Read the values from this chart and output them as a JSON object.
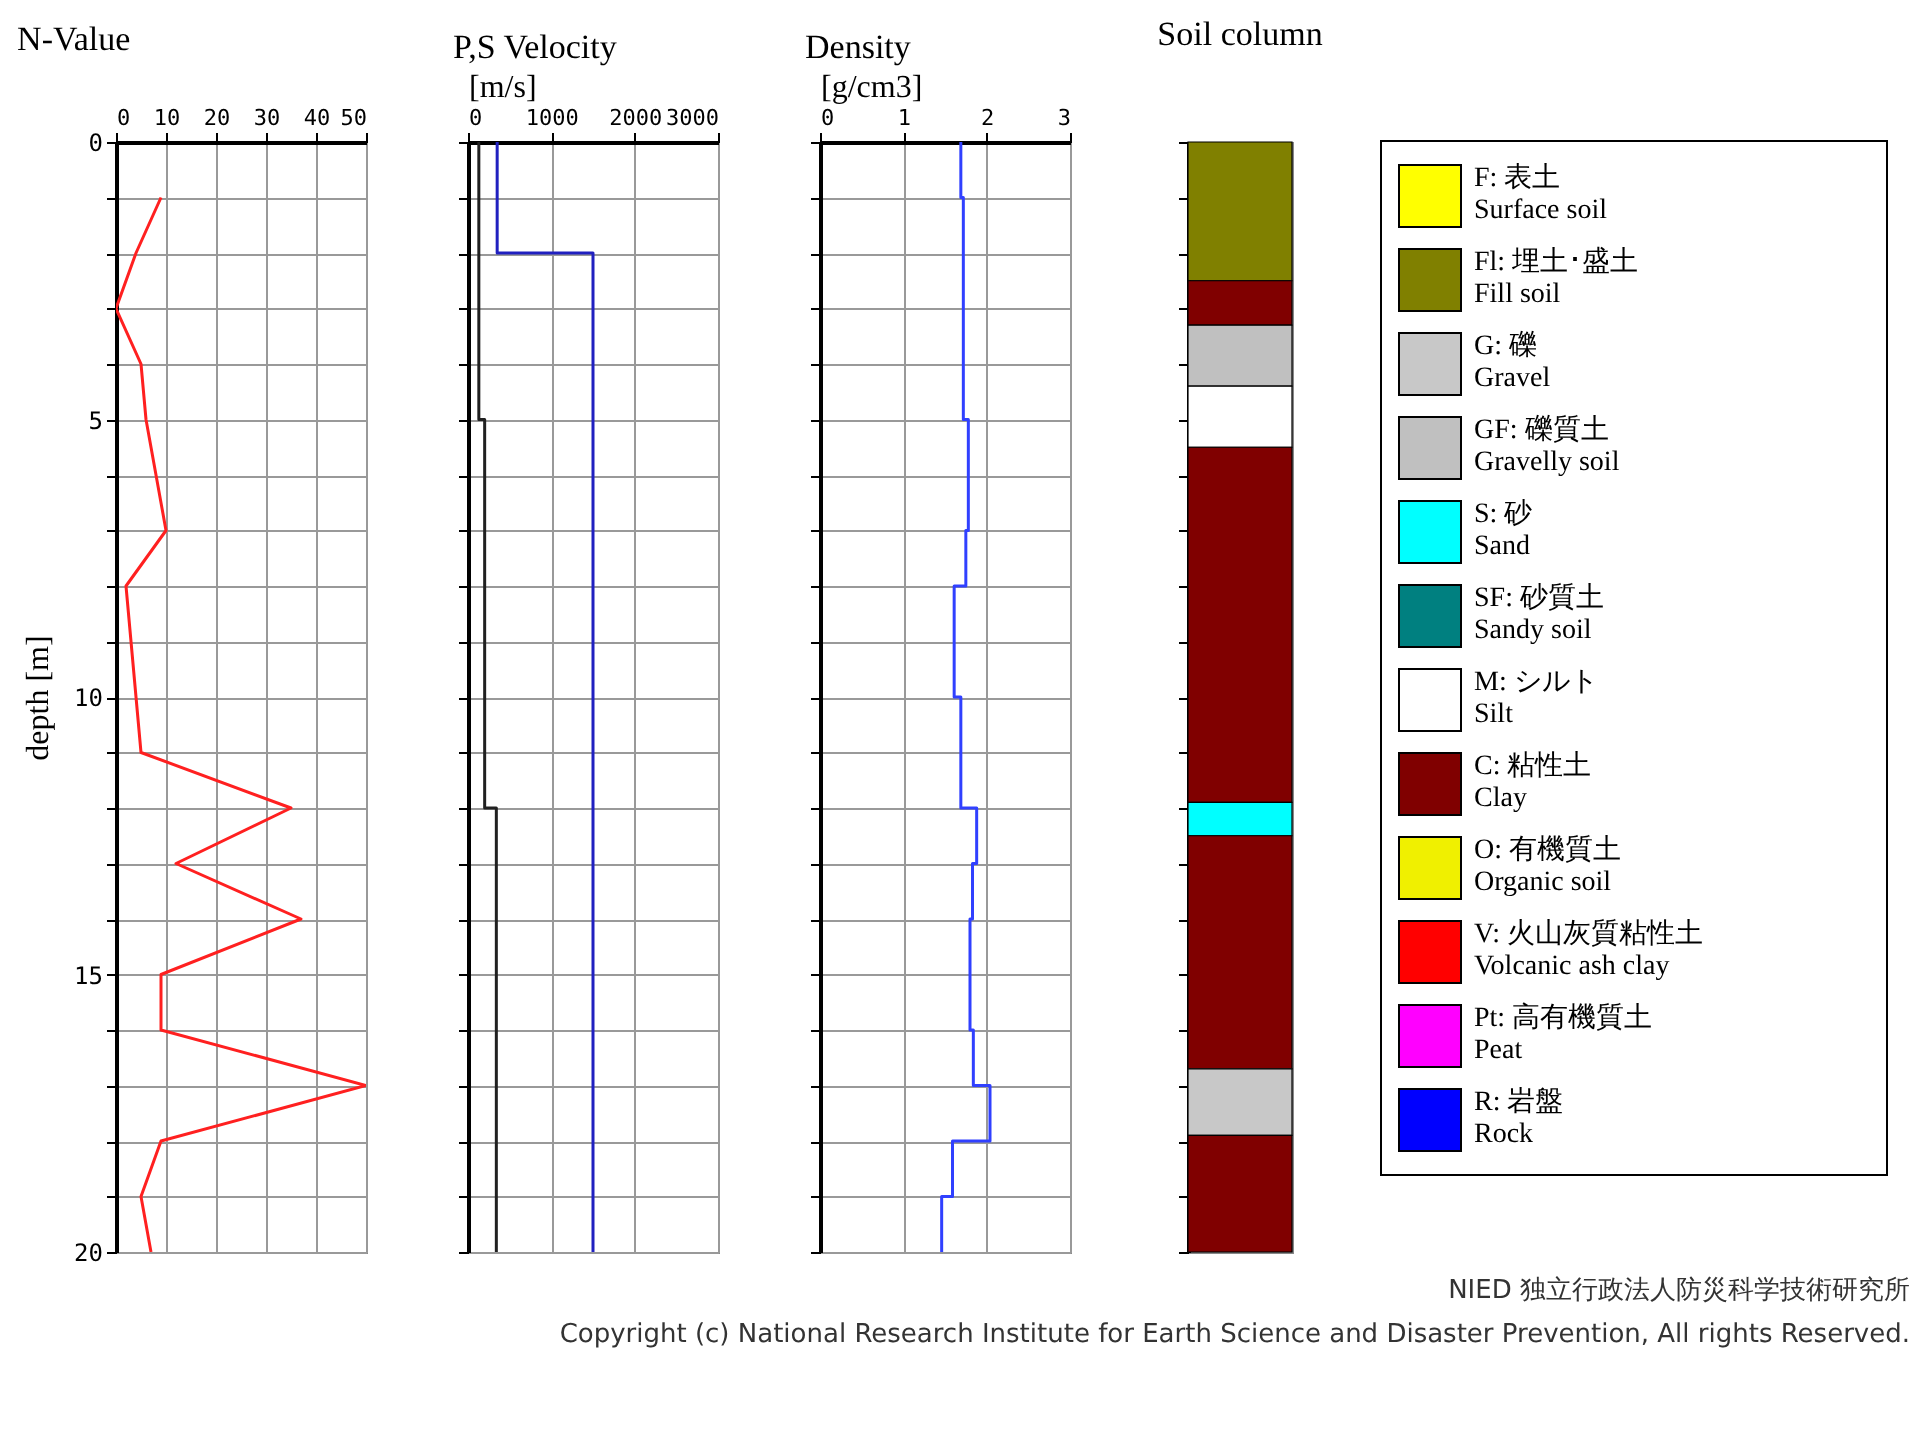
{
  "chart_data": [
    {
      "type": "line",
      "title": "N-Value",
      "ylabel": "depth [m]",
      "xlim": [
        0,
        50
      ],
      "xticks": [
        0,
        10,
        20,
        30,
        40,
        50
      ],
      "ylim": [
        20,
        0
      ],
      "yticks": [
        0,
        {
          "value": 1,
          "label": null
        },
        {
          "value": 2,
          "label": null
        },
        {
          "value": 3,
          "label": null
        },
        {
          "value": 4,
          "label": null
        },
        5,
        {
          "value": 6,
          "label": null
        },
        {
          "value": 7,
          "label": null
        },
        {
          "value": 8,
          "label": null
        },
        {
          "value": 9,
          "label": null
        },
        10,
        {
          "value": 11,
          "label": null
        },
        {
          "value": 12,
          "label": null
        },
        {
          "value": 13,
          "label": null
        },
        {
          "value": 14,
          "label": null
        },
        15,
        {
          "value": 16,
          "label": null
        },
        {
          "value": 17,
          "label": null
        },
        {
          "value": 18,
          "label": null
        },
        {
          "value": 19,
          "label": null
        },
        20
      ],
      "grid": true,
      "series": [
        {
          "color": "#ff2020",
          "x": [
            9,
            4,
            0,
            5,
            6,
            8,
            10,
            2,
            3,
            4,
            5,
            35,
            12,
            37,
            9,
            9,
            50,
            9,
            5,
            7
          ],
          "values": [
            1,
            2,
            3,
            4,
            5,
            6,
            7,
            8,
            9,
            10,
            11,
            12,
            13,
            14,
            15,
            16,
            17,
            18,
            19,
            20
          ]
        }
      ]
    },
    {
      "type": "line",
      "title": "P,S Velocity",
      "xlabel": "[m/s]",
      "xlim": [
        0,
        3000
      ],
      "xticks": [
        0,
        1000,
        2000,
        3000
      ],
      "ylim": [
        20,
        0
      ],
      "yticks": [
        0,
        {
          "value": 1,
          "label": null
        },
        {
          "value": 2,
          "label": null
        },
        {
          "value": 3,
          "label": null
        },
        {
          "value": 4,
          "label": null
        },
        5,
        {
          "value": 6,
          "label": null
        },
        {
          "value": 7,
          "label": null
        },
        {
          "value": 8,
          "label": null
        },
        {
          "value": 9,
          "label": null
        },
        10,
        {
          "value": 11,
          "label": null
        },
        {
          "value": 12,
          "label": null
        },
        {
          "value": 13,
          "label": null
        },
        {
          "value": 14,
          "label": null
        },
        15,
        {
          "value": 16,
          "label": null
        },
        {
          "value": 17,
          "label": null
        },
        {
          "value": 18,
          "label": null
        },
        {
          "value": 19,
          "label": null
        },
        20
      ],
      "grid": true,
      "tick_labels": "x",
      "series": [
        {
          "color": "#202020",
          "x": [
            130,
            130,
            200,
            200,
            340,
            340
          ],
          "values": [
            0,
            5,
            5,
            12,
            12,
            20
          ]
        },
        {
          "color": "#2020c0",
          "x": [
            350,
            350,
            1500,
            1500
          ],
          "values": [
            0,
            2,
            2,
            20
          ]
        }
      ]
    },
    {
      "type": "line",
      "title": "Density",
      "xlabel": "[g/cm3]",
      "xlim": [
        0,
        3
      ],
      "xticks": [
        0,
        1,
        2,
        3
      ],
      "ylim": [
        20,
        0
      ],
      "yticks": [
        0,
        {
          "value": 1,
          "label": null
        },
        {
          "value": 2,
          "label": null
        },
        {
          "value": 3,
          "label": null
        },
        {
          "value": 4,
          "label": null
        },
        5,
        {
          "value": 6,
          "label": null
        },
        {
          "value": 7,
          "label": null
        },
        {
          "value": 8,
          "label": null
        },
        {
          "value": 9,
          "label": null
        },
        10,
        {
          "value": 11,
          "label": null
        },
        {
          "value": 12,
          "label": null
        },
        {
          "value": 13,
          "label": null
        },
        {
          "value": 14,
          "label": null
        },
        15,
        {
          "value": 16,
          "label": null
        },
        {
          "value": 17,
          "label": null
        },
        {
          "value": 18,
          "label": null
        },
        {
          "value": 19,
          "label": null
        },
        20
      ],
      "grid": true,
      "tick_labels": "x",
      "series": [
        {
          "color": "#3040ff",
          "x": [
            1.69,
            1.69,
            1.72,
            1.72,
            1.78,
            1.78,
            1.75,
            1.75,
            1.61,
            1.61,
            1.69,
            1.69,
            1.88,
            1.88,
            1.83,
            1.83,
            1.8,
            1.8,
            1.84,
            1.84,
            2.04,
            2.04,
            1.59,
            1.59,
            1.46,
            1.46
          ],
          "values": [
            0,
            1,
            1,
            5,
            5,
            7,
            7,
            8,
            8,
            10,
            10,
            12,
            12,
            13,
            13,
            14,
            14,
            16,
            16,
            17,
            17,
            18,
            18,
            19,
            19,
            20
          ]
        }
      ]
    },
    {
      "type": "bar",
      "title": "Soil column",
      "stacked": true,
      "categories": [
        null
      ],
      "ylim": [
        20,
        0
      ],
      "yticks": [
        0,
        {
          "value": 1,
          "label": null
        },
        {
          "value": 2,
          "label": null
        },
        {
          "value": 3,
          "label": null
        },
        {
          "value": 4,
          "label": null
        },
        5,
        {
          "value": 6,
          "label": null
        },
        {
          "value": 7,
          "label": null
        },
        {
          "value": 8,
          "label": null
        },
        {
          "value": 9,
          "label": null
        },
        10,
        {
          "value": 11,
          "label": null
        },
        {
          "value": 12,
          "label": null
        },
        {
          "value": 13,
          "label": null
        },
        {
          "value": 14,
          "label": null
        },
        15,
        {
          "value": 16,
          "label": null
        },
        {
          "value": 17,
          "label": null
        },
        {
          "value": 18,
          "label": null
        },
        {
          "value": 19,
          "label": null
        },
        20
      ],
      "tick_labels": false,
      "annotations": [
        "NIED 独立行政法人防災科学技術研究所",
        "Copyright (c) National Research Institute for Earth Science and Disaster Prevention, All rights Reserved."
      ],
      "series": [
        {
          "color": "#808000",
          "values": [
            2.5
          ]
        },
        {
          "color": "#800000",
          "values": [
            0.8
          ]
        },
        {
          "color": "#c0c0c0",
          "values": [
            1.1
          ]
        },
        {
          "color": "#ffffff",
          "values": [
            1.1
          ]
        },
        {
          "color": "#800000",
          "values": [
            6.4
          ]
        },
        {
          "color": "#00ffff",
          "values": [
            0.6
          ]
        },
        {
          "color": "#800000",
          "values": [
            4.2
          ]
        },
        {
          "color": "#c8c8c8",
          "values": [
            1.2
          ]
        },
        {
          "color": "#800000",
          "values": [
            2.1
          ]
        }
      ]
    },
    {
      "type": "other",
      "annotations": [
        "F: 表土\nSurface soil",
        "Fl: 埋土･盛土\nFill soil",
        "G: 礫\nGravel",
        "GF: 礫質土\nGravelly soil",
        "S: 砂\nSand",
        "SF: 砂質土\nSandy soil",
        "M: シルト\nSilt",
        "C: 粘性土\nClay",
        "O: 有機質土\nOrganic soil",
        "V: 火山灰質粘性土\nVolcanic ash clay",
        "Pt: 高有機質土\nPeat",
        "R: 岩盤\nRock"
      ]
    }
  ]
}
